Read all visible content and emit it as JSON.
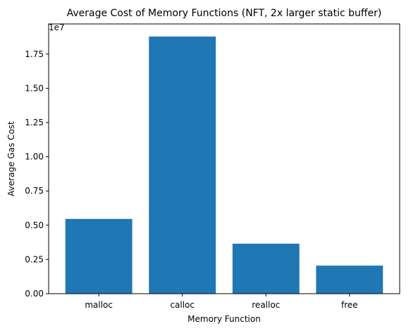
{
  "chart_data": {
    "type": "bar",
    "title": "Average Cost of Memory Functions (NFT, 2x larger static buffer)",
    "xlabel": "Memory Function",
    "ylabel": "Average Gas Cost",
    "offset_label": "1e7",
    "categories": [
      "malloc",
      "calloc",
      "realloc",
      "free"
    ],
    "values": [
      5460000,
      18780000,
      3650000,
      2050000
    ],
    "ylim": [
      0,
      19700000
    ],
    "yticks": [
      0,
      2500000,
      5000000,
      7500000,
      10000000,
      12500000,
      15000000,
      17500000
    ],
    "ytick_labels": [
      "0.00",
      "0.25",
      "0.50",
      "0.75",
      "1.00",
      "1.25",
      "1.50",
      "1.75"
    ],
    "bar_color": "#1f77b4",
    "grid": false,
    "legend": "none"
  }
}
